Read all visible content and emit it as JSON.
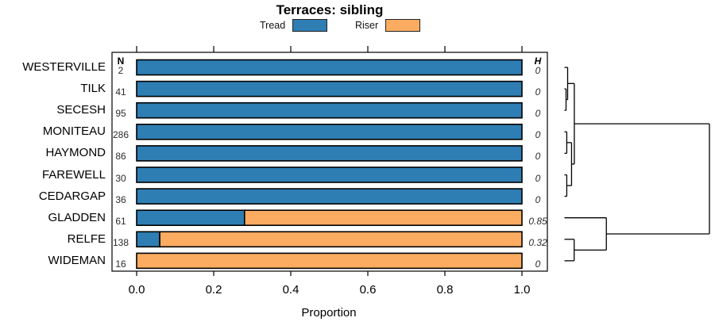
{
  "title": "Terraces: sibling",
  "legend": [
    {
      "label": "Tread",
      "color": "#2e7eb3"
    },
    {
      "label": "Riser",
      "color": "#fbac61"
    }
  ],
  "chart_data": {
    "type": "bar",
    "orientation": "horizontal",
    "stacked": true,
    "title": "Terraces: sibling",
    "xlabel": "Proportion",
    "xlim": [
      0,
      1
    ],
    "xticks": [
      0.0,
      0.2,
      0.4,
      0.6,
      0.8,
      1.0
    ],
    "xtick_labels": [
      "0.0",
      "0.2",
      "0.4",
      "0.6",
      "0.8",
      "1.0"
    ],
    "series_names": [
      "Tread",
      "Riser"
    ],
    "columns": {
      "n_header": "N",
      "h_header": "H"
    },
    "rows": [
      {
        "label": "WESTERVILLE",
        "n": "2",
        "h": "0",
        "tread": 1.0,
        "riser": 0.0
      },
      {
        "label": "TILK",
        "n": "41",
        "h": "0",
        "tread": 1.0,
        "riser": 0.0
      },
      {
        "label": "SECESH",
        "n": "95",
        "h": "0",
        "tread": 1.0,
        "riser": 0.0
      },
      {
        "label": "MONITEAU",
        "n": "286",
        "h": "0",
        "tread": 1.0,
        "riser": 0.0
      },
      {
        "label": "HAYMOND",
        "n": "86",
        "h": "0",
        "tread": 1.0,
        "riser": 0.0
      },
      {
        "label": "FAREWELL",
        "n": "30",
        "h": "0",
        "tread": 1.0,
        "riser": 0.0
      },
      {
        "label": "CEDARGAP",
        "n": "36",
        "h": "0",
        "tread": 1.0,
        "riser": 0.0
      },
      {
        "label": "GLADDEN",
        "n": "61",
        "h": "0.85",
        "tread": 0.28,
        "riser": 0.72
      },
      {
        "label": "RELFE",
        "n": "138",
        "h": "0.32",
        "tread": 0.06,
        "riser": 0.94
      },
      {
        "label": "WIDEMAN",
        "n": "16",
        "h": "0",
        "tread": 0.0,
        "riser": 1.0
      }
    ]
  },
  "dendrogram": {
    "note": "heights are relative (0 = leaf edge, 1 = root)",
    "tree": {
      "height": 1.0,
      "children": [
        {
          "height": 0.068,
          "children": [
            {
              "height": 0.022,
              "children": [
                {
                  "leaf": "WESTERVILLE"
                },
                {
                  "height": 0.011,
                  "children": [
                    {
                      "leaf": "TILK"
                    },
                    {
                      "leaf": "SECESH"
                    }
                  ]
                }
              ]
            },
            {
              "height": 0.049,
              "children": [
                {
                  "height": 0.016,
                  "children": [
                    {
                      "leaf": "MONITEAU"
                    },
                    {
                      "leaf": "HAYMOND"
                    }
                  ]
                },
                {
                  "height": 0.016,
                  "children": [
                    {
                      "leaf": "FAREWELL"
                    },
                    {
                      "leaf": "CEDARGAP"
                    }
                  ]
                }
              ]
            }
          ]
        },
        {
          "height": 0.289,
          "children": [
            {
              "leaf": "GLADDEN"
            },
            {
              "height": 0.067,
              "children": [
                {
                  "leaf": "RELFE"
                },
                {
                  "leaf": "WIDEMAN"
                }
              ]
            }
          ]
        }
      ]
    }
  }
}
